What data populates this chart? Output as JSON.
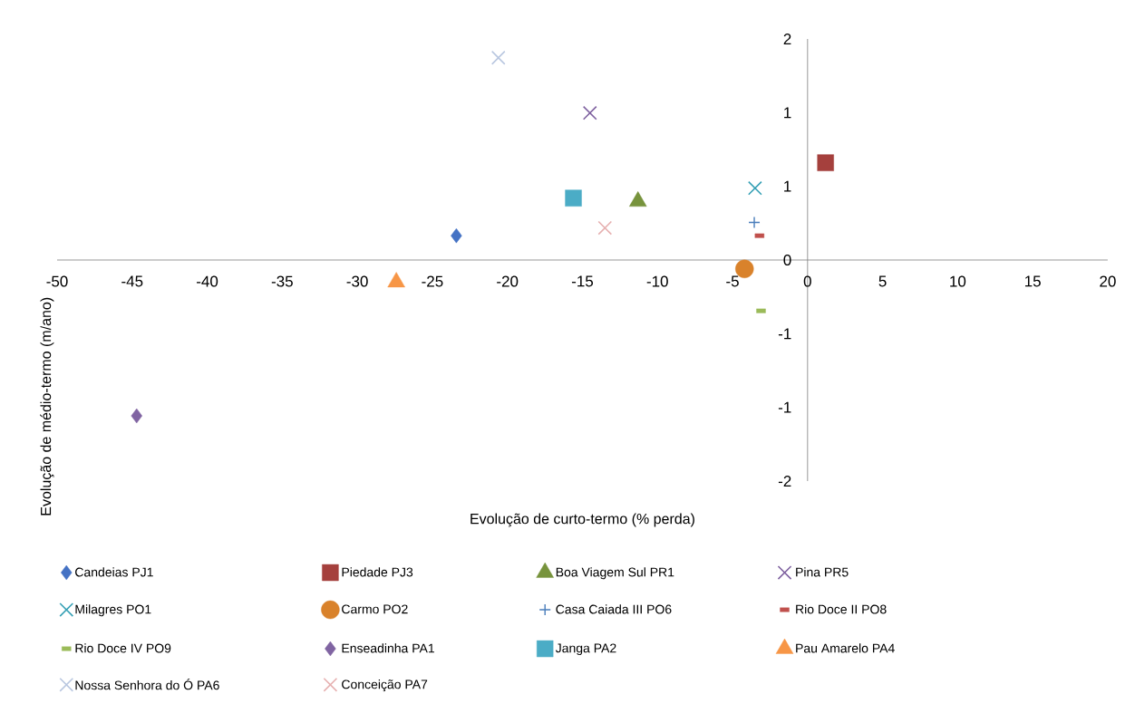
{
  "chart_data": {
    "type": "scatter",
    "xlabel": "Evolução de curto-termo (% perda)",
    "ylabel": "Evolução de médio-termo (m/ano)",
    "xlim": [
      -50,
      20
    ],
    "xticks": [
      -50,
      -45,
      -40,
      -35,
      -30,
      -25,
      -20,
      -15,
      -10,
      -5,
      0,
      5,
      10,
      15,
      20
    ],
    "ylim": [
      -2,
      2
    ],
    "yticks": [
      -2,
      {
        "value": -1.3333,
        "label": "-1"
      },
      {
        "value": -0.6667,
        "label": "-1"
      },
      0,
      {
        "value": 0.6667,
        "label": "1"
      },
      {
        "value": 1.3333,
        "label": "1"
      },
      2
    ],
    "legend": "bottom",
    "series": [
      {
        "name": "Candeias PJ1",
        "color": "#4472c4",
        "marker": "diamond",
        "x": [
          -23.4
        ],
        "values": [
          0.22
        ]
      },
      {
        "name": "Piedade PJ3",
        "color": "#a5403d",
        "marker": "square",
        "x": [
          1.2
        ],
        "values": [
          0.88
        ]
      },
      {
        "name": "Boa Viagem Sul PR1",
        "color": "#77933c",
        "marker": "triangle",
        "x": [
          -11.3
        ],
        "values": [
          0.53
        ]
      },
      {
        "name": "Pina PR5",
        "color": "#7f62a0",
        "marker": "cross",
        "x": [
          -14.5
        ],
        "values": [
          1.33
        ]
      },
      {
        "name": "Milagres PO1",
        "color": "#36a0b5",
        "marker": "cross",
        "x": [
          -3.5
        ],
        "values": [
          0.65
        ]
      },
      {
        "name": "Carmo PO2",
        "color": "#d9822b",
        "marker": "circle",
        "x": [
          -4.2
        ],
        "values": [
          -0.08
        ]
      },
      {
        "name": "Casa Caiada III PO6",
        "color": "#4a7ebb",
        "marker": "plus",
        "x": [
          -3.55
        ],
        "values": [
          0.34
        ]
      },
      {
        "name": "Rio Doce II PO8",
        "color": "#c0504d",
        "x": [
          -3.2
        ],
        "values": [
          0.22
        ]
      },
      {
        "name": "Rio Doce IV PO9",
        "color": "#9bbb59",
        "x": [
          -3.1
        ],
        "values": [
          -0.46
        ]
      },
      {
        "name": "Enseadinha PA1",
        "color": "#8064a2",
        "marker": "diamond",
        "x": [
          -44.7
        ],
        "values": [
          -1.41
        ]
      },
      {
        "name": "Janga PA2",
        "color": "#4bacc6",
        "marker": "square",
        "x": [
          -15.6
        ],
        "values": [
          0.56
        ]
      },
      {
        "name": "Pau Amarelo PA4",
        "color": "#f79646",
        "marker": "triangle",
        "x": [
          -27.4
        ],
        "values": [
          -0.2
        ]
      },
      {
        "name": "Nossa Senhora do Ó PA6",
        "color": "#b9c7e0",
        "marker": "cross",
        "x": [
          -20.6
        ],
        "values": [
          1.83
        ]
      },
      {
        "name": "Conceição PA7",
        "color": "#e6b0b0",
        "marker": "cross",
        "x": [
          -13.5
        ],
        "values": [
          0.29
        ]
      }
    ]
  }
}
